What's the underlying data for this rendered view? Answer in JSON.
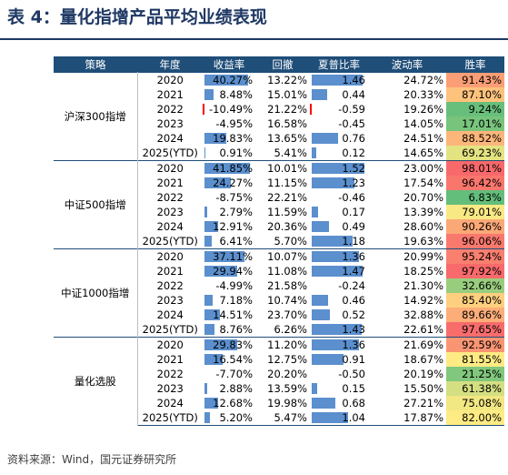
{
  "title": "表 4：量化指增产品平均业绩表现",
  "headers": [
    "策略",
    "年度",
    "收益率",
    "回撤",
    "夏普比率",
    "波动率",
    "胜率"
  ],
  "groups": [
    {
      "name": "沪深300指增",
      "rows": [
        {
          "year": "2020",
          "ret": "40.27%",
          "ret_val": 40.27,
          "mdd": "13.22%",
          "sharpe": "1.46",
          "sharpe_val": 1.46,
          "vol": "24.72%",
          "win": "91.43%",
          "win_val": 91.43
        },
        {
          "year": "2021",
          "ret": "8.48%",
          "ret_val": 8.48,
          "mdd": "15.01%",
          "sharpe": "0.44",
          "sharpe_val": 0.44,
          "vol": "20.33%",
          "win": "87.10%",
          "win_val": 87.1
        },
        {
          "year": "2022",
          "ret": "-10.49%",
          "ret_val": -10.49,
          "mdd": "21.22%",
          "sharpe": "-0.59",
          "sharpe_val": -0.59,
          "vol": "19.26%",
          "win": "9.24%",
          "win_val": 9.24
        },
        {
          "year": "2023",
          "ret": "-4.95%",
          "ret_val": -4.95,
          "mdd": "16.58%",
          "sharpe": "-0.45",
          "sharpe_val": -0.45,
          "vol": "14.05%",
          "win": "17.01%",
          "win_val": 17.01
        },
        {
          "year": "2024",
          "ret": "19.83%",
          "ret_val": 19.83,
          "mdd": "13.65%",
          "sharpe": "0.76",
          "sharpe_val": 0.76,
          "vol": "24.51%",
          "win": "88.52%",
          "win_val": 88.52
        },
        {
          "year": "2025(YTD)",
          "ret": "0.91%",
          "ret_val": 0.91,
          "mdd": "5.41%",
          "sharpe": "0.12",
          "sharpe_val": 0.12,
          "vol": "14.65%",
          "win": "69.23%",
          "win_val": 69.23
        }
      ]
    },
    {
      "name": "中证500指增",
      "rows": [
        {
          "year": "2020",
          "ret": "41.85%",
          "ret_val": 41.85,
          "mdd": "10.01%",
          "sharpe": "1.52",
          "sharpe_val": 1.52,
          "vol": "23.00%",
          "win": "98.01%",
          "win_val": 98.01
        },
        {
          "year": "2021",
          "ret": "24.27%",
          "ret_val": 24.27,
          "mdd": "11.15%",
          "sharpe": "1.23",
          "sharpe_val": 1.23,
          "vol": "17.54%",
          "win": "96.42%",
          "win_val": 96.42
        },
        {
          "year": "2022",
          "ret": "-8.75%",
          "ret_val": -8.75,
          "mdd": "22.21%",
          "sharpe": "-0.46",
          "sharpe_val": -0.46,
          "vol": "20.70%",
          "win": "6.83%",
          "win_val": 6.83
        },
        {
          "year": "2023",
          "ret": "2.79%",
          "ret_val": 2.79,
          "mdd": "11.59%",
          "sharpe": "0.17",
          "sharpe_val": 0.17,
          "vol": "13.39%",
          "win": "79.01%",
          "win_val": 79.01
        },
        {
          "year": "2024",
          "ret": "12.91%",
          "ret_val": 12.91,
          "mdd": "20.36%",
          "sharpe": "0.49",
          "sharpe_val": 0.49,
          "vol": "28.60%",
          "win": "90.26%",
          "win_val": 90.26
        },
        {
          "year": "2025(YTD)",
          "ret": "6.41%",
          "ret_val": 6.41,
          "mdd": "5.70%",
          "sharpe": "1.18",
          "sharpe_val": 1.18,
          "vol": "19.63%",
          "win": "96.06%",
          "win_val": 96.06
        }
      ]
    },
    {
      "name": "中证1000指增",
      "rows": [
        {
          "year": "2020",
          "ret": "37.11%",
          "ret_val": 37.11,
          "mdd": "10.07%",
          "sharpe": "1.36",
          "sharpe_val": 1.36,
          "vol": "20.99%",
          "win": "95.24%",
          "win_val": 95.24
        },
        {
          "year": "2021",
          "ret": "29.94%",
          "ret_val": 29.94,
          "mdd": "11.08%",
          "sharpe": "1.47",
          "sharpe_val": 1.47,
          "vol": "18.25%",
          "win": "97.92%",
          "win_val": 97.92
        },
        {
          "year": "2022",
          "ret": "-4.99%",
          "ret_val": -4.99,
          "mdd": "21.58%",
          "sharpe": "-0.24",
          "sharpe_val": -0.24,
          "vol": "21.30%",
          "win": "32.66%",
          "win_val": 32.66
        },
        {
          "year": "2023",
          "ret": "7.18%",
          "ret_val": 7.18,
          "mdd": "10.74%",
          "sharpe": "0.46",
          "sharpe_val": 0.46,
          "vol": "14.92%",
          "win": "85.40%",
          "win_val": 85.4
        },
        {
          "year": "2024",
          "ret": "14.51%",
          "ret_val": 14.51,
          "mdd": "23.70%",
          "sharpe": "0.52",
          "sharpe_val": 0.52,
          "vol": "32.88%",
          "win": "89.66%",
          "win_val": 89.66
        },
        {
          "year": "2025(YTD)",
          "ret": "8.76%",
          "ret_val": 8.76,
          "mdd": "6.26%",
          "sharpe": "1.43",
          "sharpe_val": 1.43,
          "vol": "22.61%",
          "win": "97.65%",
          "win_val": 97.65
        }
      ]
    },
    {
      "name": "量化选股",
      "rows": [
        {
          "year": "2020",
          "ret": "29.83%",
          "ret_val": 29.83,
          "mdd": "11.20%",
          "sharpe": "1.36",
          "sharpe_val": 1.36,
          "vol": "21.69%",
          "win": "92.59%",
          "win_val": 92.59
        },
        {
          "year": "2021",
          "ret": "16.54%",
          "ret_val": 16.54,
          "mdd": "12.75%",
          "sharpe": "0.91",
          "sharpe_val": 0.91,
          "vol": "18.67%",
          "win": "81.55%",
          "win_val": 81.55
        },
        {
          "year": "2022",
          "ret": "-7.70%",
          "ret_val": -7.7,
          "mdd": "20.20%",
          "sharpe": "-0.50",
          "sharpe_val": -0.5,
          "vol": "20.19%",
          "win": "21.25%",
          "win_val": 21.25
        },
        {
          "year": "2023",
          "ret": "2.88%",
          "ret_val": 2.88,
          "mdd": "13.59%",
          "sharpe": "0.15",
          "sharpe_val": 0.15,
          "vol": "15.50%",
          "win": "61.38%",
          "win_val": 61.38
        },
        {
          "year": "2024",
          "ret": "12.68%",
          "ret_val": 12.68,
          "mdd": "19.98%",
          "sharpe": "0.68",
          "sharpe_val": 0.68,
          "vol": "27.21%",
          "win": "75.08%",
          "win_val": 75.08
        },
        {
          "year": "2025(YTD)",
          "ret": "5.20%",
          "ret_val": 5.2,
          "mdd": "5.47%",
          "sharpe": "1.04",
          "sharpe_val": 1.04,
          "vol": "17.87%",
          "win": "82.00%",
          "win_val": 82.0
        }
      ]
    }
  ],
  "source": "资料来源：Wind，国元证券研究所",
  "colors": {
    "title": "#1f3864",
    "header_bg": "#1f4e79",
    "bar_positive": "#5b8fce",
    "bar_negative": "#ff0000",
    "scale_low": "#63be7b",
    "scale_mid": "#ffeb84",
    "scale_high": "#f8696b"
  }
}
